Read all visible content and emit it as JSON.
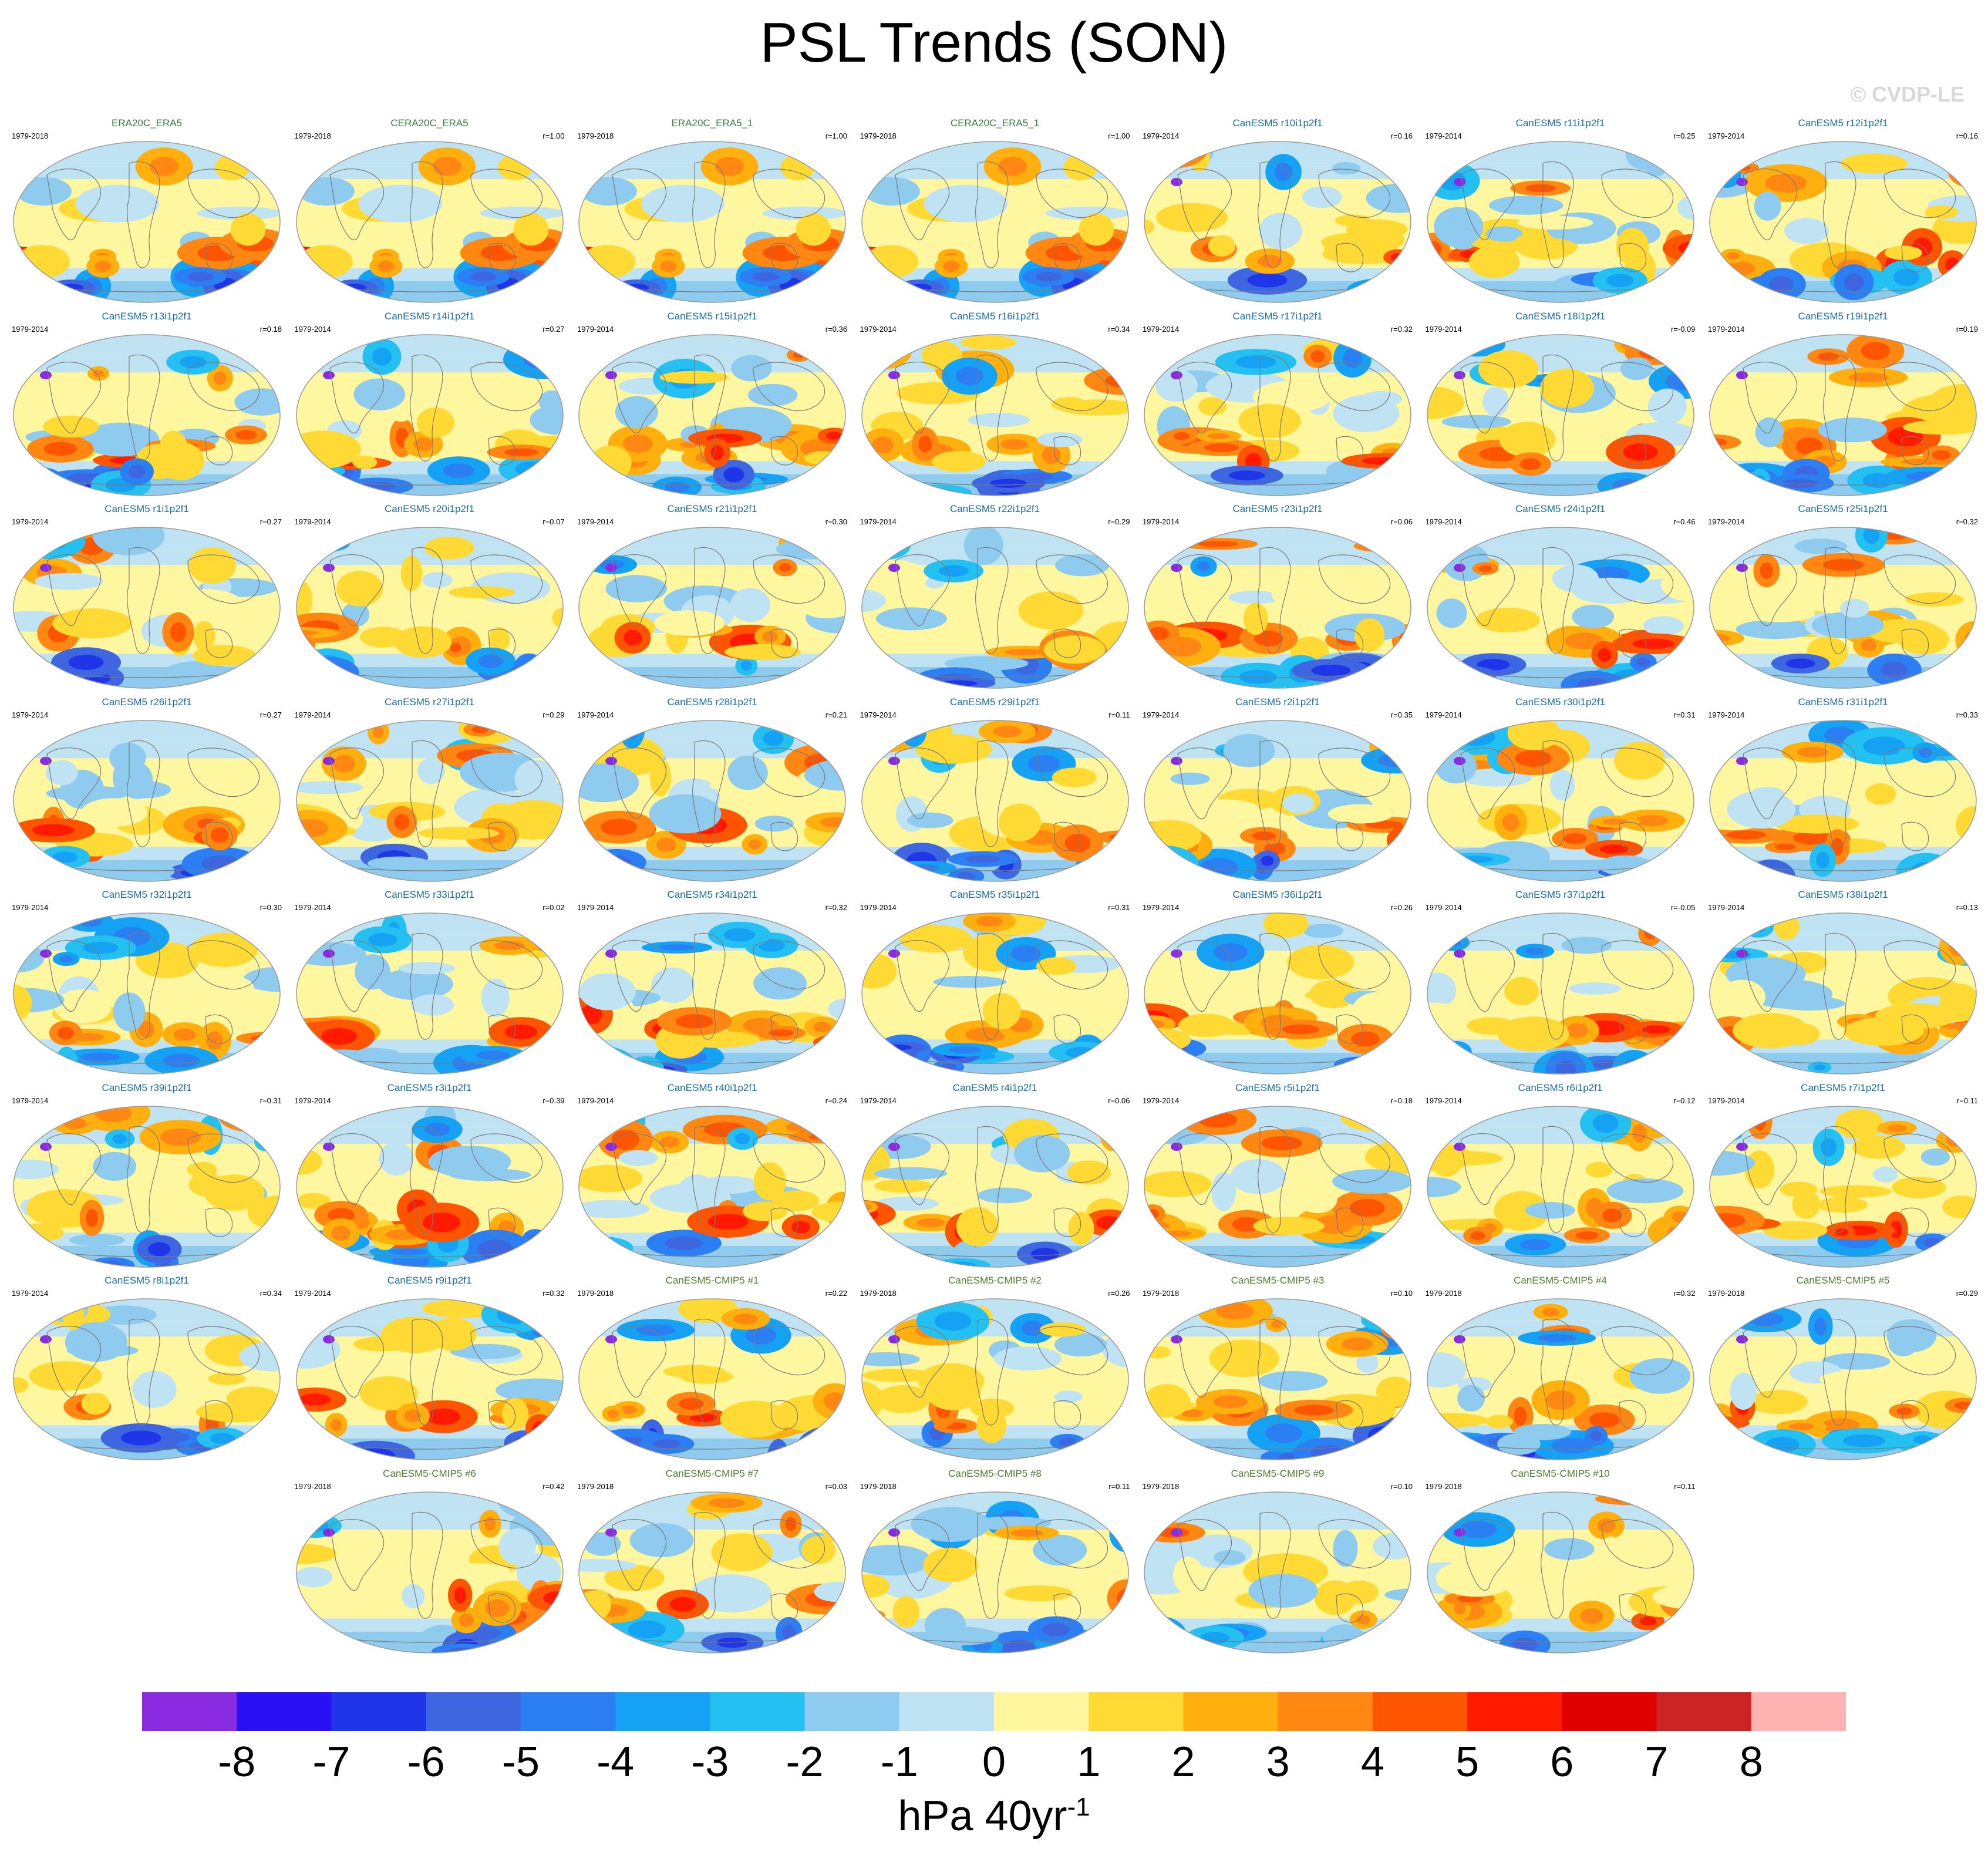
{
  "chart_data": {
    "type": "heatmap",
    "title": "PSL Trends (SON)",
    "watermark": "© CVDP-LE",
    "map_projection": "robinson",
    "colorbar": {
      "units": "hPa 40yr",
      "units_superscript": "-1",
      "ticks": [
        "-8",
        "-7",
        "-6",
        "-5",
        "-4",
        "-3",
        "-2",
        "-1",
        "0",
        "1",
        "2",
        "3",
        "4",
        "5",
        "6",
        "7",
        "8"
      ],
      "colors": [
        "#8a2be2",
        "#2a11f5",
        "#1e36e8",
        "#3d66e0",
        "#2b7ff2",
        "#15a2f5",
        "#24c0f2",
        "#8ecbee",
        "#bfe3f3",
        "#fff7a0",
        "#ffd934",
        "#ffb00f",
        "#ff8712",
        "#ff5500",
        "#ff1a00",
        "#e00000",
        "#cc2424",
        "#ffb3b3"
      ]
    },
    "panels": [
      {
        "name": "ERA20C_ERA5",
        "years": "1979-2018",
        "r": "",
        "kind": "obs",
        "seed": 11
      },
      {
        "name": "CERA20C_ERA5",
        "years": "1979-2018",
        "r": "r=1.00",
        "kind": "obs",
        "seed": 11
      },
      {
        "name": "ERA20C_ERA5_1",
        "years": "1979-2018",
        "r": "r=1.00",
        "kind": "obs",
        "seed": 11
      },
      {
        "name": "CERA20C_ERA5_1",
        "years": "1979-2018",
        "r": "r=1.00",
        "kind": "obs",
        "seed": 11
      },
      {
        "name": "CanESM5 r10i1p2f1",
        "years": "1979-2014",
        "r": "r=0.16",
        "kind": "sim",
        "seed": 21
      },
      {
        "name": "CanESM5 r11i1p2f1",
        "years": "1979-2014",
        "r": "r=0.25",
        "kind": "sim",
        "seed": 22
      },
      {
        "name": "CanESM5 r12i1p2f1",
        "years": "1979-2014",
        "r": "r=0.16",
        "kind": "sim",
        "seed": 23
      },
      {
        "name": "CanESM5 r13i1p2f1",
        "years": "1979-2014",
        "r": "r=0.18",
        "kind": "sim",
        "seed": 24
      },
      {
        "name": "CanESM5 r14i1p2f1",
        "years": "1979-2014",
        "r": "r=0.27",
        "kind": "sim",
        "seed": 25
      },
      {
        "name": "CanESM5 r15i1p2f1",
        "years": "1979-2014",
        "r": "r=0.36",
        "kind": "sim",
        "seed": 26
      },
      {
        "name": "CanESM5 r16i1p2f1",
        "years": "1979-2014",
        "r": "r=0.34",
        "kind": "sim",
        "seed": 27
      },
      {
        "name": "CanESM5 r17i1p2f1",
        "years": "1979-2014",
        "r": "r=0.32",
        "kind": "sim",
        "seed": 28
      },
      {
        "name": "CanESM5 r18i1p2f1",
        "years": "1979-2014",
        "r": "r=-0.09",
        "kind": "sim",
        "seed": 29
      },
      {
        "name": "CanESM5 r19i1p2f1",
        "years": "1979-2014",
        "r": "r=0.19",
        "kind": "sim",
        "seed": 30
      },
      {
        "name": "CanESM5 r1i1p2f1",
        "years": "1979-2014",
        "r": "r=0.27",
        "kind": "sim",
        "seed": 31
      },
      {
        "name": "CanESM5 r20i1p2f1",
        "years": "1979-2014",
        "r": "r=0.07",
        "kind": "sim",
        "seed": 32
      },
      {
        "name": "CanESM5 r21i1p2f1",
        "years": "1979-2014",
        "r": "r=0.30",
        "kind": "sim",
        "seed": 33
      },
      {
        "name": "CanESM5 r22i1p2f1",
        "years": "1979-2014",
        "r": "r=0.29",
        "kind": "sim",
        "seed": 34
      },
      {
        "name": "CanESM5 r23i1p2f1",
        "years": "1979-2014",
        "r": "r=0.06",
        "kind": "sim",
        "seed": 35
      },
      {
        "name": "CanESM5 r24i1p2f1",
        "years": "1979-2014",
        "r": "r=0.46",
        "kind": "sim",
        "seed": 36
      },
      {
        "name": "CanESM5 r25i1p2f1",
        "years": "1979-2014",
        "r": "r=0.32",
        "kind": "sim",
        "seed": 37
      },
      {
        "name": "CanESM5 r26i1p2f1",
        "years": "1979-2014",
        "r": "r=0.27",
        "kind": "sim",
        "seed": 38
      },
      {
        "name": "CanESM5 r27i1p2f1",
        "years": "1979-2014",
        "r": "r=0.29",
        "kind": "sim",
        "seed": 39
      },
      {
        "name": "CanESM5 r28i1p2f1",
        "years": "1979-2014",
        "r": "r=0.21",
        "kind": "sim",
        "seed": 40
      },
      {
        "name": "CanESM5 r29i1p2f1",
        "years": "1979-2014",
        "r": "r=0.11",
        "kind": "sim",
        "seed": 41
      },
      {
        "name": "CanESM5 r2i1p2f1",
        "years": "1979-2014",
        "r": "r=0.35",
        "kind": "sim",
        "seed": 42
      },
      {
        "name": "CanESM5 r30i1p2f1",
        "years": "1979-2014",
        "r": "r=0.31",
        "kind": "sim",
        "seed": 43
      },
      {
        "name": "CanESM5 r31i1p2f1",
        "years": "1979-2014",
        "r": "r=0.33",
        "kind": "sim",
        "seed": 44
      },
      {
        "name": "CanESM5 r32i1p2f1",
        "years": "1979-2014",
        "r": "r=0.30",
        "kind": "sim",
        "seed": 45
      },
      {
        "name": "CanESM5 r33i1p2f1",
        "years": "1979-2014",
        "r": "r=0.02",
        "kind": "sim",
        "seed": 46
      },
      {
        "name": "CanESM5 r34i1p2f1",
        "years": "1979-2014",
        "r": "r=0.32",
        "kind": "sim",
        "seed": 47
      },
      {
        "name": "CanESM5 r35i1p2f1",
        "years": "1979-2014",
        "r": "r=0.31",
        "kind": "sim",
        "seed": 48
      },
      {
        "name": "CanESM5 r36i1p2f1",
        "years": "1979-2014",
        "r": "r=0.26",
        "kind": "sim",
        "seed": 49
      },
      {
        "name": "CanESM5 r37i1p2f1",
        "years": "1979-2014",
        "r": "r=-0.05",
        "kind": "sim",
        "seed": 50
      },
      {
        "name": "CanESM5 r38i1p2f1",
        "years": "1979-2014",
        "r": "r=0.13",
        "kind": "sim",
        "seed": 51
      },
      {
        "name": "CanESM5 r39i1p2f1",
        "years": "1979-2014",
        "r": "r=0.31",
        "kind": "sim",
        "seed": 52
      },
      {
        "name": "CanESM5 r3i1p2f1",
        "years": "1979-2014",
        "r": "r=0.39",
        "kind": "sim",
        "seed": 53
      },
      {
        "name": "CanESM5 r40i1p2f1",
        "years": "1979-2014",
        "r": "r=0.24",
        "kind": "sim",
        "seed": 54
      },
      {
        "name": "CanESM5 r4i1p2f1",
        "years": "1979-2014",
        "r": "r=0.06",
        "kind": "sim",
        "seed": 55
      },
      {
        "name": "CanESM5 r5i1p2f1",
        "years": "1979-2014",
        "r": "r=0.18",
        "kind": "sim",
        "seed": 56
      },
      {
        "name": "CanESM5 r6i1p2f1",
        "years": "1979-2014",
        "r": "r=0.12",
        "kind": "sim",
        "seed": 57
      },
      {
        "name": "CanESM5 r7i1p2f1",
        "years": "1979-2014",
        "r": "r=0.11",
        "kind": "sim",
        "seed": 58
      },
      {
        "name": "CanESM5 r8i1p2f1",
        "years": "1979-2014",
        "r": "r=0.34",
        "kind": "sim",
        "seed": 59
      },
      {
        "name": "CanESM5 r9i1p2f1",
        "years": "1979-2014",
        "r": "r=0.32",
        "kind": "sim",
        "seed": 60
      },
      {
        "name": "CanESM5-CMIP5 #1",
        "years": "1979-2018",
        "r": "r=0.22",
        "kind": "cmip",
        "seed": 61
      },
      {
        "name": "CanESM5-CMIP5 #2",
        "years": "1979-2018",
        "r": "r=0.26",
        "kind": "cmip",
        "seed": 62
      },
      {
        "name": "CanESM5-CMIP5 #3",
        "years": "1979-2018",
        "r": "r=0.10",
        "kind": "cmip",
        "seed": 63
      },
      {
        "name": "CanESM5-CMIP5 #4",
        "years": "1979-2018",
        "r": "r=0.32",
        "kind": "cmip",
        "seed": 64
      },
      {
        "name": "CanESM5-CMIP5 #5",
        "years": "1979-2018",
        "r": "r=0.29",
        "kind": "cmip",
        "seed": 65
      },
      {
        "name": "CanESM5-CMIP5 #6",
        "years": "1979-2018",
        "r": "r=0.42",
        "kind": "cmip",
        "seed": 66
      },
      {
        "name": "CanESM5-CMIP5 #7",
        "years": "1979-2018",
        "r": "r=0.03",
        "kind": "cmip",
        "seed": 67
      },
      {
        "name": "CanESM5-CMIP5 #8",
        "years": "1979-2018",
        "r": "r=0.11",
        "kind": "cmip",
        "seed": 68
      },
      {
        "name": "CanESM5-CMIP5 #9",
        "years": "1979-2018",
        "r": "r=0.10",
        "kind": "cmip",
        "seed": 69
      },
      {
        "name": "CanESM5-CMIP5 #10",
        "years": "1979-2018",
        "r": "r=0.11",
        "kind": "cmip",
        "seed": 70
      }
    ]
  }
}
